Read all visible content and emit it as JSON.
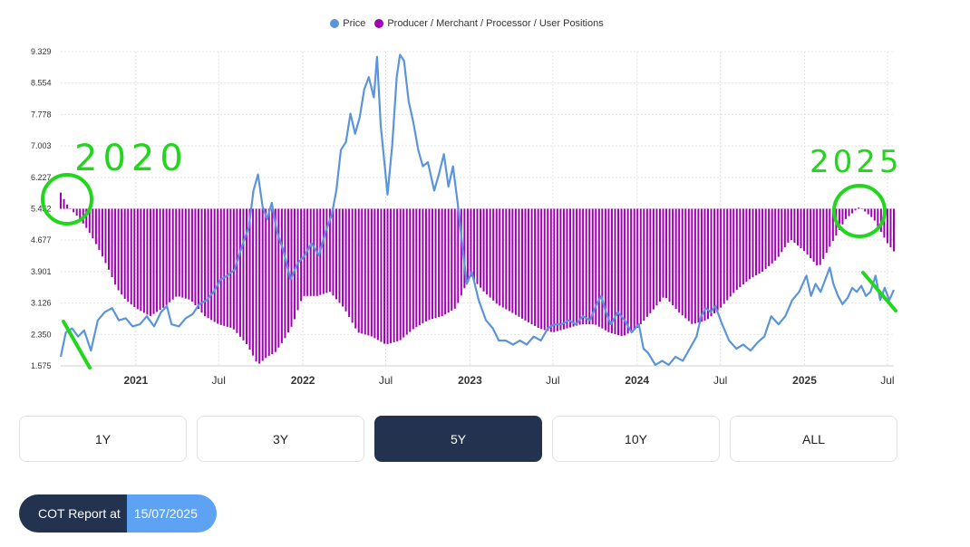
{
  "legend": {
    "price_label": "Price",
    "positions_label": "Producer / Merchant / Processor / User Positions"
  },
  "colors": {
    "price": "#5b94d9",
    "positions": "#a000b3",
    "grid": "#e4e4e4",
    "annotation": "#22d61e",
    "active_button": "#22324f",
    "date_pill": "#5ea3f3"
  },
  "chart_data": {
    "type": "line+bar",
    "ytick_labels": [
      "1.575",
      "2.350",
      "3.126",
      "3.901",
      "4.677",
      "5.452",
      "6.227",
      "7.003",
      "7.778",
      "8.554",
      "9.329"
    ],
    "ylim": [
      1.575,
      9.329
    ],
    "x_range": [
      "2020-07-21",
      "2025-07-15"
    ],
    "xtick_labels": [
      {
        "date": "2021-01-01",
        "label": "2021",
        "bold": true
      },
      {
        "date": "2021-07-01",
        "label": "Jul",
        "bold": false
      },
      {
        "date": "2022-01-01",
        "label": "2022",
        "bold": true
      },
      {
        "date": "2022-07-01",
        "label": "Jul",
        "bold": false
      },
      {
        "date": "2023-01-01",
        "label": "2023",
        "bold": true
      },
      {
        "date": "2023-07-01",
        "label": "Jul",
        "bold": false
      },
      {
        "date": "2024-01-01",
        "label": "2024",
        "bold": true
      },
      {
        "date": "2024-07-01",
        "label": "Jul",
        "bold": false
      },
      {
        "date": "2025-01-01",
        "label": "2025",
        "bold": true
      },
      {
        "date": "2025-07-01",
        "label": "Jul",
        "bold": false
      }
    ],
    "grid": true,
    "legend_position": "top-center",
    "series": [
      {
        "name": "Price",
        "type": "line",
        "points": [
          [
            "2020-07-21",
            1.8
          ],
          [
            "2020-08-01",
            2.4
          ],
          [
            "2020-08-15",
            2.5
          ],
          [
            "2020-08-28",
            2.3
          ],
          [
            "2020-09-10",
            2.45
          ],
          [
            "2020-09-25",
            1.95
          ],
          [
            "2020-10-10",
            2.7
          ],
          [
            "2020-10-25",
            2.9
          ],
          [
            "2020-11-10",
            3.0
          ],
          [
            "2020-11-25",
            2.7
          ],
          [
            "2020-12-10",
            2.75
          ],
          [
            "2020-12-25",
            2.55
          ],
          [
            "2021-01-10",
            2.6
          ],
          [
            "2021-01-25",
            2.8
          ],
          [
            "2021-02-10",
            2.55
          ],
          [
            "2021-02-25",
            2.9
          ],
          [
            "2021-03-10",
            3.05
          ],
          [
            "2021-03-20",
            2.6
          ],
          [
            "2021-04-05",
            2.55
          ],
          [
            "2021-04-20",
            2.75
          ],
          [
            "2021-05-05",
            2.85
          ],
          [
            "2021-05-20",
            3.1
          ],
          [
            "2021-06-05",
            3.2
          ],
          [
            "2021-06-20",
            3.4
          ],
          [
            "2021-07-05",
            3.7
          ],
          [
            "2021-07-20",
            3.8
          ],
          [
            "2021-08-05",
            3.95
          ],
          [
            "2021-08-20",
            4.5
          ],
          [
            "2021-09-05",
            5.0
          ],
          [
            "2021-09-15",
            5.9
          ],
          [
            "2021-09-25",
            6.3
          ],
          [
            "2021-10-05",
            5.5
          ],
          [
            "2021-10-15",
            5.2
          ],
          [
            "2021-10-25",
            5.6
          ],
          [
            "2021-11-05",
            4.9
          ],
          [
            "2021-11-20",
            4.4
          ],
          [
            "2021-12-05",
            3.7
          ],
          [
            "2021-12-20",
            4.1
          ],
          [
            "2022-01-05",
            4.3
          ],
          [
            "2022-01-20",
            4.6
          ],
          [
            "2022-02-05",
            4.3
          ],
          [
            "2022-02-20",
            4.9
          ],
          [
            "2022-03-05",
            5.3
          ],
          [
            "2022-03-15",
            5.9
          ],
          [
            "2022-03-25",
            6.9
          ],
          [
            "2022-04-05",
            7.1
          ],
          [
            "2022-04-15",
            7.8
          ],
          [
            "2022-04-25",
            7.3
          ],
          [
            "2022-05-05",
            7.7
          ],
          [
            "2022-05-15",
            8.4
          ],
          [
            "2022-05-25",
            8.7
          ],
          [
            "2022-06-05",
            8.2
          ],
          [
            "2022-06-12",
            9.2
          ],
          [
            "2022-06-20",
            7.5
          ],
          [
            "2022-06-28",
            6.6
          ],
          [
            "2022-07-05",
            5.8
          ],
          [
            "2022-07-15",
            7.0
          ],
          [
            "2022-07-25",
            8.7
          ],
          [
            "2022-08-01",
            9.25
          ],
          [
            "2022-08-10",
            9.1
          ],
          [
            "2022-08-20",
            8.1
          ],
          [
            "2022-08-30",
            7.6
          ],
          [
            "2022-09-10",
            6.9
          ],
          [
            "2022-09-20",
            6.5
          ],
          [
            "2022-10-01",
            6.6
          ],
          [
            "2022-10-15",
            5.9
          ],
          [
            "2022-10-25",
            6.3
          ],
          [
            "2022-11-05",
            6.8
          ],
          [
            "2022-11-15",
            6.0
          ],
          [
            "2022-11-25",
            6.5
          ],
          [
            "2022-12-05",
            5.6
          ],
          [
            "2022-12-15",
            4.6
          ],
          [
            "2022-12-25",
            3.6
          ],
          [
            "2023-01-05",
            3.9
          ],
          [
            "2023-01-20",
            3.2
          ],
          [
            "2023-02-05",
            2.7
          ],
          [
            "2023-02-20",
            2.5
          ],
          [
            "2023-03-05",
            2.2
          ],
          [
            "2023-03-20",
            2.2
          ],
          [
            "2023-04-05",
            2.1
          ],
          [
            "2023-04-20",
            2.2
          ],
          [
            "2023-05-05",
            2.1
          ],
          [
            "2023-05-20",
            2.3
          ],
          [
            "2023-06-05",
            2.2
          ],
          [
            "2023-06-20",
            2.5
          ],
          [
            "2023-07-05",
            2.6
          ],
          [
            "2023-07-20",
            2.6
          ],
          [
            "2023-08-05",
            2.7
          ],
          [
            "2023-08-20",
            2.6
          ],
          [
            "2023-09-05",
            2.8
          ],
          [
            "2023-09-20",
            2.7
          ],
          [
            "2023-10-05",
            3.1
          ],
          [
            "2023-10-15",
            3.3
          ],
          [
            "2023-10-25",
            2.9
          ],
          [
            "2023-11-05",
            2.6
          ],
          [
            "2023-11-20",
            2.9
          ],
          [
            "2023-12-05",
            2.7
          ],
          [
            "2023-12-20",
            2.4
          ],
          [
            "2024-01-05",
            2.6
          ],
          [
            "2024-01-15",
            2.0
          ],
          [
            "2024-01-25",
            1.9
          ],
          [
            "2024-02-10",
            1.6
          ],
          [
            "2024-02-25",
            1.7
          ],
          [
            "2024-03-10",
            1.6
          ],
          [
            "2024-03-25",
            1.8
          ],
          [
            "2024-04-10",
            1.7
          ],
          [
            "2024-04-25",
            2.0
          ],
          [
            "2024-05-10",
            2.3
          ],
          [
            "2024-05-20",
            2.8
          ],
          [
            "2024-05-30",
            3.0
          ],
          [
            "2024-06-10",
            2.9
          ],
          [
            "2024-06-20",
            3.05
          ],
          [
            "2024-07-05",
            2.6
          ],
          [
            "2024-07-20",
            2.2
          ],
          [
            "2024-08-05",
            2.0
          ],
          [
            "2024-08-20",
            2.1
          ],
          [
            "2024-09-05",
            1.95
          ],
          [
            "2024-09-20",
            2.15
          ],
          [
            "2024-10-05",
            2.3
          ],
          [
            "2024-10-20",
            2.8
          ],
          [
            "2024-11-05",
            2.6
          ],
          [
            "2024-11-20",
            2.8
          ],
          [
            "2024-12-05",
            3.2
          ],
          [
            "2024-12-20",
            3.4
          ],
          [
            "2025-01-05",
            3.8
          ],
          [
            "2025-01-15",
            3.3
          ],
          [
            "2025-01-25",
            3.6
          ],
          [
            "2025-02-05",
            3.4
          ],
          [
            "2025-02-15",
            3.7
          ],
          [
            "2025-02-25",
            4.0
          ],
          [
            "2025-03-05",
            3.6
          ],
          [
            "2025-03-15",
            3.3
          ],
          [
            "2025-03-25",
            3.1
          ],
          [
            "2025-04-05",
            3.25
          ],
          [
            "2025-04-15",
            3.5
          ],
          [
            "2025-04-25",
            3.4
          ],
          [
            "2025-05-05",
            3.55
          ],
          [
            "2025-05-15",
            3.3
          ],
          [
            "2025-05-25",
            3.4
          ],
          [
            "2025-06-05",
            3.8
          ],
          [
            "2025-06-15",
            3.2
          ],
          [
            "2025-06-25",
            3.5
          ],
          [
            "2025-07-05",
            3.2
          ],
          [
            "2025-07-15",
            3.45
          ]
        ]
      },
      {
        "name": "Producer / Merchant / Processor / User Positions",
        "type": "bar",
        "baseline": 5.452,
        "points": [
          [
            "2020-07-21",
            5.85
          ],
          [
            "2020-08-01",
            5.6
          ],
          [
            "2020-08-15",
            5.4
          ],
          [
            "2020-09-01",
            5.2
          ],
          [
            "2020-09-20",
            4.9
          ],
          [
            "2020-10-10",
            4.5
          ],
          [
            "2020-11-01",
            4.0
          ],
          [
            "2020-11-20",
            3.5
          ],
          [
            "2020-12-10",
            3.2
          ],
          [
            "2021-01-01",
            3.0
          ],
          [
            "2021-02-01",
            2.8
          ],
          [
            "2021-03-01",
            3.0
          ],
          [
            "2021-04-01",
            3.3
          ],
          [
            "2021-05-01",
            3.2
          ],
          [
            "2021-06-01",
            2.8
          ],
          [
            "2021-07-01",
            2.6
          ],
          [
            "2021-08-01",
            2.5
          ],
          [
            "2021-09-01",
            2.1
          ],
          [
            "2021-09-25",
            1.6
          ],
          [
            "2021-10-15",
            1.8
          ],
          [
            "2021-11-01",
            1.9
          ],
          [
            "2021-11-20",
            2.2
          ],
          [
            "2021-12-10",
            2.6
          ],
          [
            "2022-01-01",
            3.3
          ],
          [
            "2022-02-01",
            3.3
          ],
          [
            "2022-03-01",
            3.4
          ],
          [
            "2022-04-01",
            3.0
          ],
          [
            "2022-05-01",
            2.4
          ],
          [
            "2022-06-01",
            2.3
          ],
          [
            "2022-07-01",
            2.1
          ],
          [
            "2022-08-01",
            2.2
          ],
          [
            "2022-09-01",
            2.5
          ],
          [
            "2022-10-01",
            2.7
          ],
          [
            "2022-11-01",
            2.8
          ],
          [
            "2022-12-01",
            3.0
          ],
          [
            "2023-01-01",
            3.8
          ],
          [
            "2023-02-01",
            3.4
          ],
          [
            "2023-03-01",
            3.1
          ],
          [
            "2023-04-01",
            2.9
          ],
          [
            "2023-05-01",
            2.7
          ],
          [
            "2023-06-01",
            2.5
          ],
          [
            "2023-07-01",
            2.4
          ],
          [
            "2023-08-01",
            2.5
          ],
          [
            "2023-09-01",
            2.6
          ],
          [
            "2023-10-01",
            2.6
          ],
          [
            "2023-11-01",
            2.4
          ],
          [
            "2023-12-01",
            2.3
          ],
          [
            "2024-01-01",
            2.5
          ],
          [
            "2024-02-01",
            2.9
          ],
          [
            "2024-03-01",
            3.3
          ],
          [
            "2024-04-01",
            2.9
          ],
          [
            "2024-05-01",
            2.6
          ],
          [
            "2024-06-01",
            2.7
          ],
          [
            "2024-07-01",
            3.0
          ],
          [
            "2024-08-01",
            3.4
          ],
          [
            "2024-09-01",
            3.7
          ],
          [
            "2024-10-01",
            3.9
          ],
          [
            "2024-11-01",
            4.2
          ],
          [
            "2024-12-01",
            4.7
          ],
          [
            "2025-01-01",
            4.4
          ],
          [
            "2025-02-01",
            4.0
          ],
          [
            "2025-03-01",
            4.6
          ],
          [
            "2025-04-01",
            5.2
          ],
          [
            "2025-05-01",
            5.5
          ],
          [
            "2025-06-01",
            5.2
          ],
          [
            "2025-07-01",
            4.6
          ],
          [
            "2025-07-15",
            4.4
          ]
        ]
      }
    ],
    "annotations": [
      {
        "text": "2020",
        "kind": "handwritten"
      },
      {
        "text": "2025",
        "kind": "handwritten"
      }
    ]
  },
  "range_buttons": [
    "1Y",
    "3Y",
    "5Y",
    "10Y",
    "ALL"
  ],
  "active_range": "5Y",
  "cot": {
    "label": "COT Report at",
    "date": "15/07/2025"
  }
}
